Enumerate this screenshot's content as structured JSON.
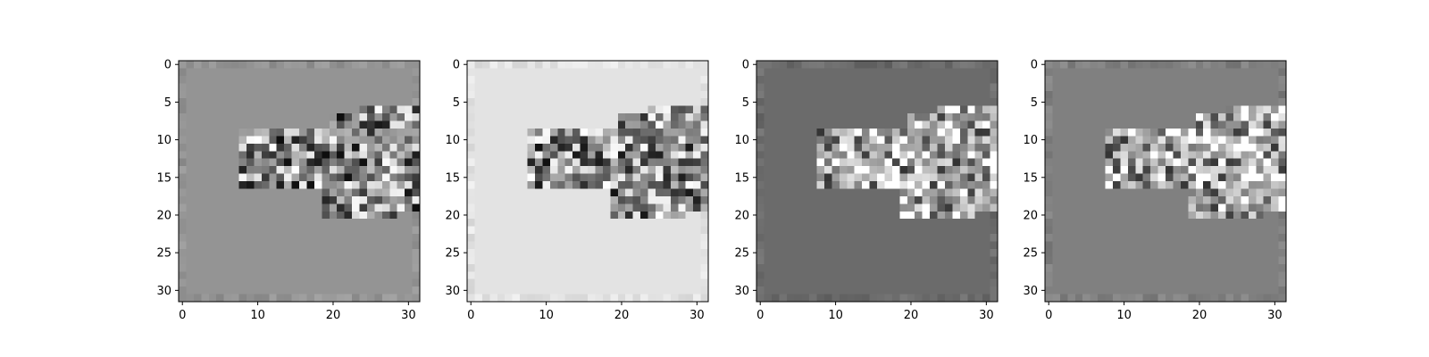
{
  "figure": {
    "background": "#ffffff",
    "colormap": "gray"
  },
  "chart_data": [
    {
      "type": "heatmap",
      "panel": 1,
      "image_size": [
        32,
        32
      ],
      "background_level": 0.58,
      "xlim": [
        -0.5,
        31.5
      ],
      "ylim": [
        31.5,
        -0.5
      ],
      "xticks": [
        0,
        10,
        20,
        30
      ],
      "yticks": [
        0,
        5,
        10,
        15,
        20,
        25,
        30
      ],
      "xtick_labels": [
        "0",
        "10",
        "20",
        "30"
      ],
      "ytick_labels": [
        "0",
        "5",
        "10",
        "15",
        "20",
        "25",
        "30"
      ],
      "title": "",
      "xlabel": "",
      "ylabel": ""
    },
    {
      "type": "heatmap",
      "panel": 2,
      "image_size": [
        32,
        32
      ],
      "background_level": 0.89,
      "xlim": [
        -0.5,
        31.5
      ],
      "ylim": [
        31.5,
        -0.5
      ],
      "xticks": [
        0,
        10,
        20,
        30
      ],
      "yticks": [
        0,
        5,
        10,
        15,
        20,
        25,
        30
      ],
      "xtick_labels": [
        "0",
        "10",
        "20",
        "30"
      ],
      "ytick_labels": [
        "0",
        "5",
        "10",
        "15",
        "20",
        "25",
        "30"
      ],
      "title": "",
      "xlabel": "",
      "ylabel": ""
    },
    {
      "type": "heatmap",
      "panel": 3,
      "image_size": [
        32,
        32
      ],
      "background_level": 0.42,
      "xlim": [
        -0.5,
        31.5
      ],
      "ylim": [
        31.5,
        -0.5
      ],
      "xticks": [
        0,
        10,
        20,
        30
      ],
      "yticks": [
        0,
        5,
        10,
        15,
        20,
        25,
        30
      ],
      "xtick_labels": [
        "0",
        "10",
        "20",
        "30"
      ],
      "ytick_labels": [
        "0",
        "5",
        "10",
        "15",
        "20",
        "25",
        "30"
      ],
      "title": "",
      "xlabel": "",
      "ylabel": ""
    },
    {
      "type": "heatmap",
      "panel": 4,
      "image_size": [
        32,
        32
      ],
      "background_level": 0.5,
      "xlim": [
        -0.5,
        31.5
      ],
      "ylim": [
        31.5,
        -0.5
      ],
      "xticks": [
        0,
        10,
        20,
        30
      ],
      "yticks": [
        0,
        5,
        10,
        15,
        20,
        25,
        30
      ],
      "xtick_labels": [
        "0",
        "10",
        "20",
        "30"
      ],
      "ytick_labels": [
        "0",
        "5",
        "10",
        "15",
        "20",
        "25",
        "30"
      ],
      "title": "",
      "xlabel": "",
      "ylabel": ""
    }
  ]
}
